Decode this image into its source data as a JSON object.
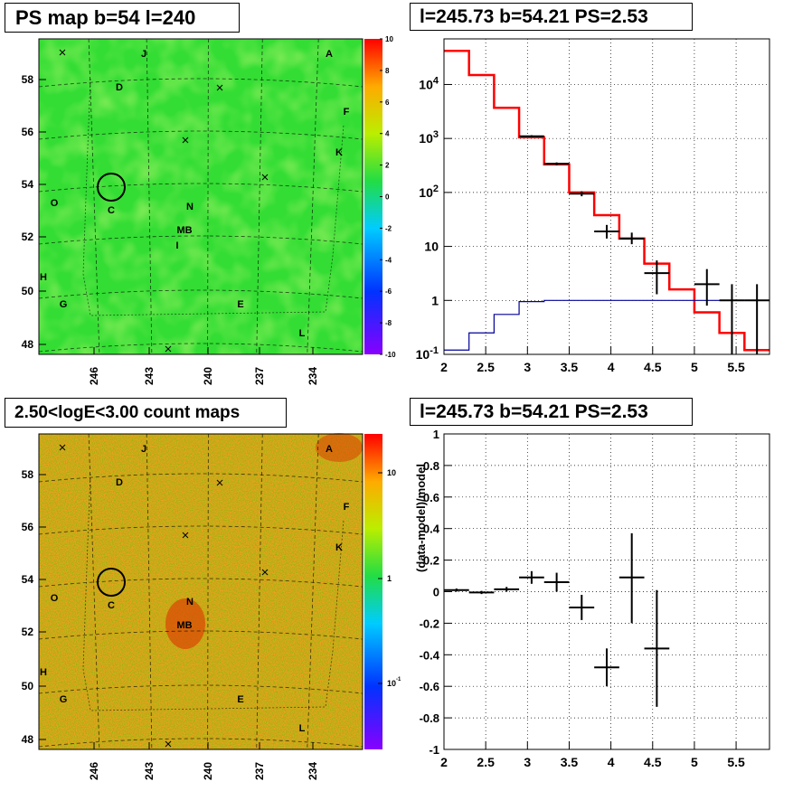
{
  "titles": {
    "ps_map": "PS map b=54 l=240",
    "spectrum": "l=245.73 b=54.21 PS=2.53",
    "count_map": "2.50<logE<3.00 count maps",
    "residual": "l=245.73 b=54.21 PS=2.53"
  },
  "map_axes": {
    "lon_ticks": [
      "246",
      "243",
      "240",
      "237",
      "234"
    ],
    "lat_ticks": [
      "58",
      "56",
      "54",
      "52",
      "50",
      "48"
    ]
  },
  "map_labels": [
    "J",
    "A",
    "D",
    "F",
    "K",
    "O",
    "C",
    "N",
    "MB",
    "I",
    "H",
    "G",
    "E",
    "L"
  ],
  "map_labels_count": [
    "J",
    "A",
    "D",
    "F",
    "K",
    "O",
    "C",
    "N",
    "MB",
    "H",
    "G",
    "E",
    "L"
  ],
  "ps_colorbar": {
    "ticks": [
      "10",
      "8",
      "6",
      "4",
      "2",
      "0",
      "-2",
      "-4",
      "-6",
      "-8",
      "-10"
    ],
    "range": [
      -10,
      10
    ]
  },
  "count_colorbar": {
    "ticks": [
      "10",
      "1",
      "10^-1"
    ]
  },
  "colors": {
    "ps_map_bg": "#33dd33",
    "count_map_bg": "#f0a020",
    "data": "#000000",
    "model": "#ff0000",
    "background_model": "#000099"
  },
  "chart_data": [
    {
      "type": "map",
      "title": "PS map b=54 l=240",
      "xlim": [
        248.5,
        231.5
      ],
      "ylim": [
        47.7,
        59.4
      ],
      "x_ticks": [
        246,
        243,
        240,
        237,
        234
      ],
      "y_ticks": [
        58,
        56,
        54,
        52,
        50,
        48
      ],
      "marked_source": {
        "l": 245.73,
        "b": 54.21
      },
      "colorbar": {
        "min": -10,
        "max": 10
      }
    },
    {
      "type": "line",
      "title": "l=245.73 b=54.21 PS=2.53",
      "y_scale": "log",
      "xlim": [
        2.0,
        5.9
      ],
      "ylim": [
        0.1,
        70000
      ],
      "x_ticks": [
        "2",
        "2.5",
        "3",
        "3.5",
        "4",
        "4.5",
        "5",
        "5.5"
      ],
      "y_ticks": [
        "10^-1",
        "1",
        "10",
        "10^2",
        "10^3",
        "10^4"
      ],
      "series": [
        {
          "style": "step",
          "color": "#ff0000",
          "bin_edges": [
            2.0,
            2.3,
            2.6,
            2.9,
            3.2,
            3.5,
            3.8,
            4.1,
            4.4,
            4.7,
            5.0,
            5.3,
            5.6,
            5.9
          ],
          "values": [
            42000,
            15000,
            3700,
            1050,
            330,
            100,
            38,
            14,
            4.8,
            1.6,
            0.6,
            0.25,
            0.12
          ]
        },
        {
          "style": "step",
          "color": "#000099",
          "bin_edges": [
            2.0,
            2.3,
            2.6,
            2.9,
            3.2,
            3.5,
            3.8,
            4.1,
            4.4,
            4.7,
            5.0,
            5.3,
            5.6,
            5.9
          ],
          "values": [
            0.12,
            0.25,
            0.55,
            0.95,
            1.0,
            1.0,
            1.0,
            1.0,
            1.0,
            1.0,
            1.0,
            1.0,
            1.0
          ]
        },
        {
          "style": "errorbar",
          "color": "#000000",
          "points": [
            {
              "x": 3.05,
              "xerr": 0.15,
              "y": 1100,
              "ylo": 1050,
              "yhi": 1150
            },
            {
              "x": 3.35,
              "xerr": 0.15,
              "y": 340,
              "ylo": 320,
              "yhi": 360
            },
            {
              "x": 3.65,
              "xerr": 0.15,
              "y": 95,
              "ylo": 85,
              "yhi": 105
            },
            {
              "x": 3.95,
              "xerr": 0.15,
              "y": 19,
              "ylo": 14,
              "yhi": 25
            },
            {
              "x": 4.25,
              "xerr": 0.15,
              "y": 14,
              "ylo": 11,
              "yhi": 18
            },
            {
              "x": 4.55,
              "xerr": 0.15,
              "y": 3.2,
              "ylo": 1.3,
              "yhi": 5.5
            },
            {
              "x": 5.15,
              "xerr": 0.15,
              "y": 2.0,
              "ylo": 0.8,
              "yhi": 3.8
            },
            {
              "x": 5.45,
              "xerr": 0.15,
              "y": 1.0,
              "ylo": 0.1,
              "yhi": 2.0
            },
            {
              "x": 5.75,
              "xerr": 0.15,
              "y": 1.0,
              "ylo": 0.1,
              "yhi": 2.0
            }
          ]
        }
      ]
    },
    {
      "type": "map",
      "title": "2.50<logE<3.00 count maps",
      "xlim": [
        248.5,
        231.5
      ],
      "ylim": [
        47.7,
        59.4
      ],
      "x_ticks": [
        246,
        243,
        240,
        237,
        234
      ],
      "y_ticks": [
        58,
        56,
        54,
        52,
        50,
        48
      ],
      "marked_source": {
        "l": 245.73,
        "b": 54.21
      }
    },
    {
      "type": "scatter",
      "title": "l=245.73 b=54.21 PS=2.53",
      "ylabel": "(data-model)/model",
      "xlim": [
        2.0,
        5.9
      ],
      "ylim": [
        -1.0,
        1.0
      ],
      "x_ticks": [
        "2",
        "2.5",
        "3",
        "3.5",
        "4",
        "4.5",
        "5",
        "5.5"
      ],
      "y_ticks": [
        "1",
        "0.8",
        "0.6",
        "0.4",
        "0.2",
        "0",
        "-0.2",
        "-0.4",
        "-0.6",
        "-0.8",
        "-1"
      ],
      "points": [
        {
          "x": 2.15,
          "xerr": 0.15,
          "y": 0.01,
          "ylo": 0.0,
          "yhi": 0.02
        },
        {
          "x": 2.45,
          "xerr": 0.15,
          "y": -0.005,
          "ylo": -0.015,
          "yhi": 0.005
        },
        {
          "x": 2.75,
          "xerr": 0.15,
          "y": 0.015,
          "ylo": 0.0,
          "yhi": 0.03
        },
        {
          "x": 3.05,
          "xerr": 0.15,
          "y": 0.09,
          "ylo": 0.05,
          "yhi": 0.13
        },
        {
          "x": 3.35,
          "xerr": 0.15,
          "y": 0.06,
          "ylo": 0.0,
          "yhi": 0.12
        },
        {
          "x": 3.65,
          "xerr": 0.15,
          "y": -0.1,
          "ylo": -0.18,
          "yhi": -0.02
        },
        {
          "x": 3.95,
          "xerr": 0.15,
          "y": -0.48,
          "ylo": -0.6,
          "yhi": -0.36
        },
        {
          "x": 4.25,
          "xerr": 0.15,
          "y": 0.09,
          "ylo": -0.2,
          "yhi": 0.37
        },
        {
          "x": 4.55,
          "xerr": 0.15,
          "y": -0.36,
          "ylo": -0.73,
          "yhi": 0.01
        }
      ]
    }
  ]
}
